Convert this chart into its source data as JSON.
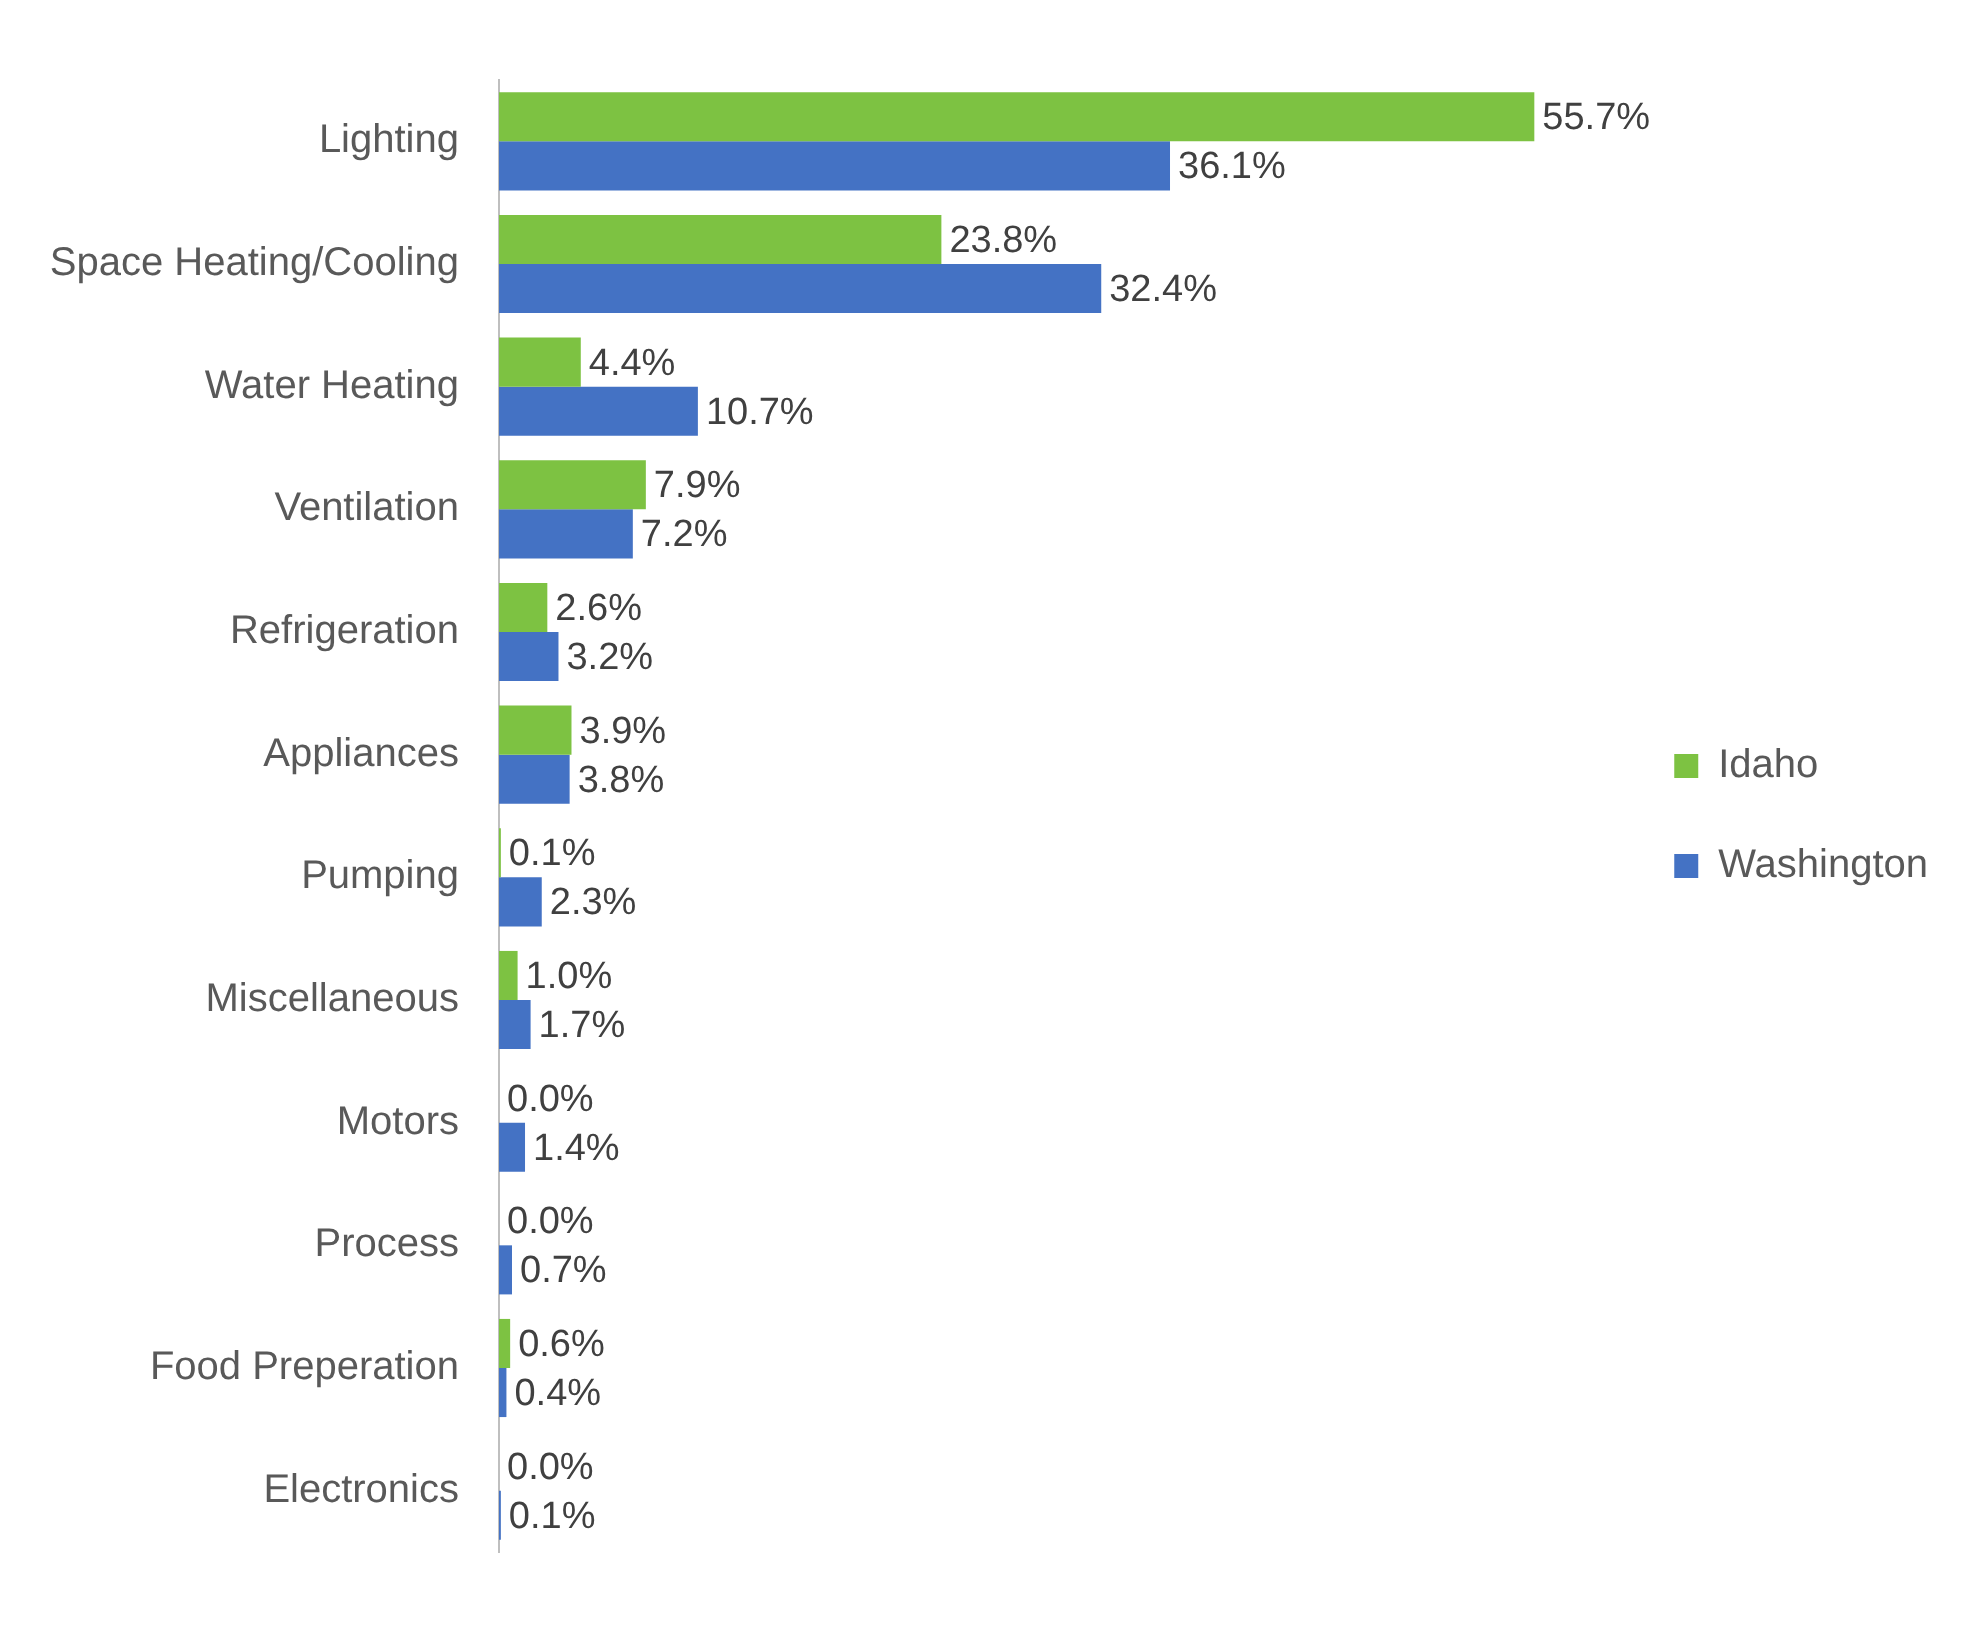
{
  "chart_data": {
    "type": "bar",
    "orientation": "horizontal",
    "categories": [
      "Lighting",
      "Space Heating/Cooling",
      "Water Heating",
      "Ventilation",
      "Refrigeration",
      "Appliances",
      "Pumping",
      "Miscellaneous",
      "Motors",
      "Process",
      "Food Preperation",
      "Electronics"
    ],
    "series": [
      {
        "name": "Idaho",
        "color": "#7dc242",
        "values": [
          55.7,
          23.8,
          4.4,
          7.9,
          2.6,
          3.9,
          0.1,
          1.0,
          0.0,
          0.0,
          0.6,
          0.0
        ],
        "value_labels": [
          "55.7%",
          "23.8%",
          "4.4%",
          "7.9%",
          "2.6%",
          "3.9%",
          "0.1%",
          "1.0%",
          "0.0%",
          "0.0%",
          "0.6%",
          "0.0%"
        ]
      },
      {
        "name": "Washington",
        "color": "#4472c4",
        "values": [
          36.1,
          32.4,
          10.7,
          7.2,
          3.2,
          3.8,
          2.3,
          1.7,
          1.4,
          0.7,
          0.4,
          0.1
        ],
        "value_labels": [
          "36.1%",
          "32.4%",
          "10.7%",
          "7.2%",
          "3.2%",
          "3.8%",
          "2.3%",
          "1.7%",
          "1.4%",
          "0.7%",
          "0.4%",
          "0.1%"
        ]
      }
    ],
    "tick_labels": "y",
    "grid": false,
    "legend": "right"
  }
}
